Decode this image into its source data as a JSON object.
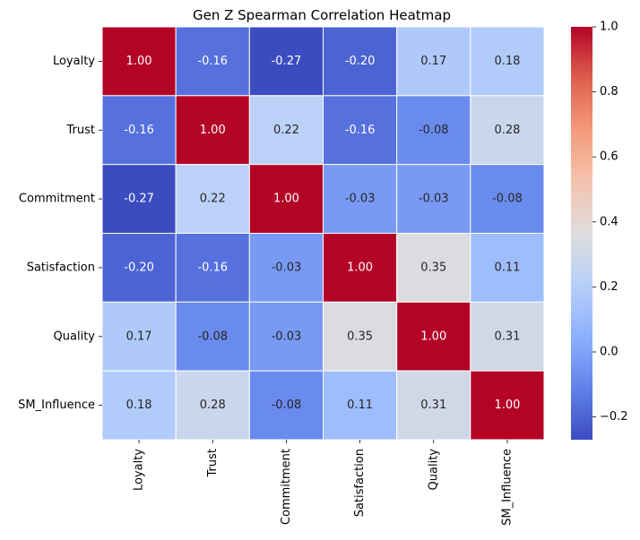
{
  "chart_data": {
    "type": "heatmap",
    "title": "Gen Z Spearman Correlation Heatmap",
    "xlabel": "",
    "ylabel": "",
    "rows": [
      "Loyalty",
      "Trust",
      "Commitment",
      "Satisfaction",
      "Quality",
      "SM_Influence"
    ],
    "columns": [
      "Loyalty",
      "Trust",
      "Commitment",
      "Satisfaction",
      "Quality",
      "SM_Influence"
    ],
    "values": [
      [
        1.0,
        -0.16,
        -0.27,
        -0.2,
        0.17,
        0.18
      ],
      [
        -0.16,
        1.0,
        0.22,
        -0.16,
        -0.08,
        0.28
      ],
      [
        -0.27,
        0.22,
        1.0,
        -0.03,
        -0.03,
        -0.08
      ],
      [
        -0.2,
        -0.16,
        -0.03,
        1.0,
        0.35,
        0.11
      ],
      [
        0.17,
        -0.08,
        -0.03,
        0.35,
        1.0,
        0.31
      ],
      [
        0.18,
        0.28,
        -0.08,
        0.11,
        0.31,
        1.0
      ]
    ],
    "value_format": "0.00",
    "colormap": "coolwarm",
    "colorbar": {
      "min": -0.27,
      "max": 1.0,
      "ticks": [
        -0.2,
        0.0,
        0.2,
        0.4,
        0.6,
        0.8,
        1.0
      ],
      "tick_labels": [
        "−0.2",
        "0.0",
        "0.2",
        "0.4",
        "0.6",
        "0.8",
        "1.0"
      ]
    },
    "grid": false,
    "legend": "right"
  }
}
